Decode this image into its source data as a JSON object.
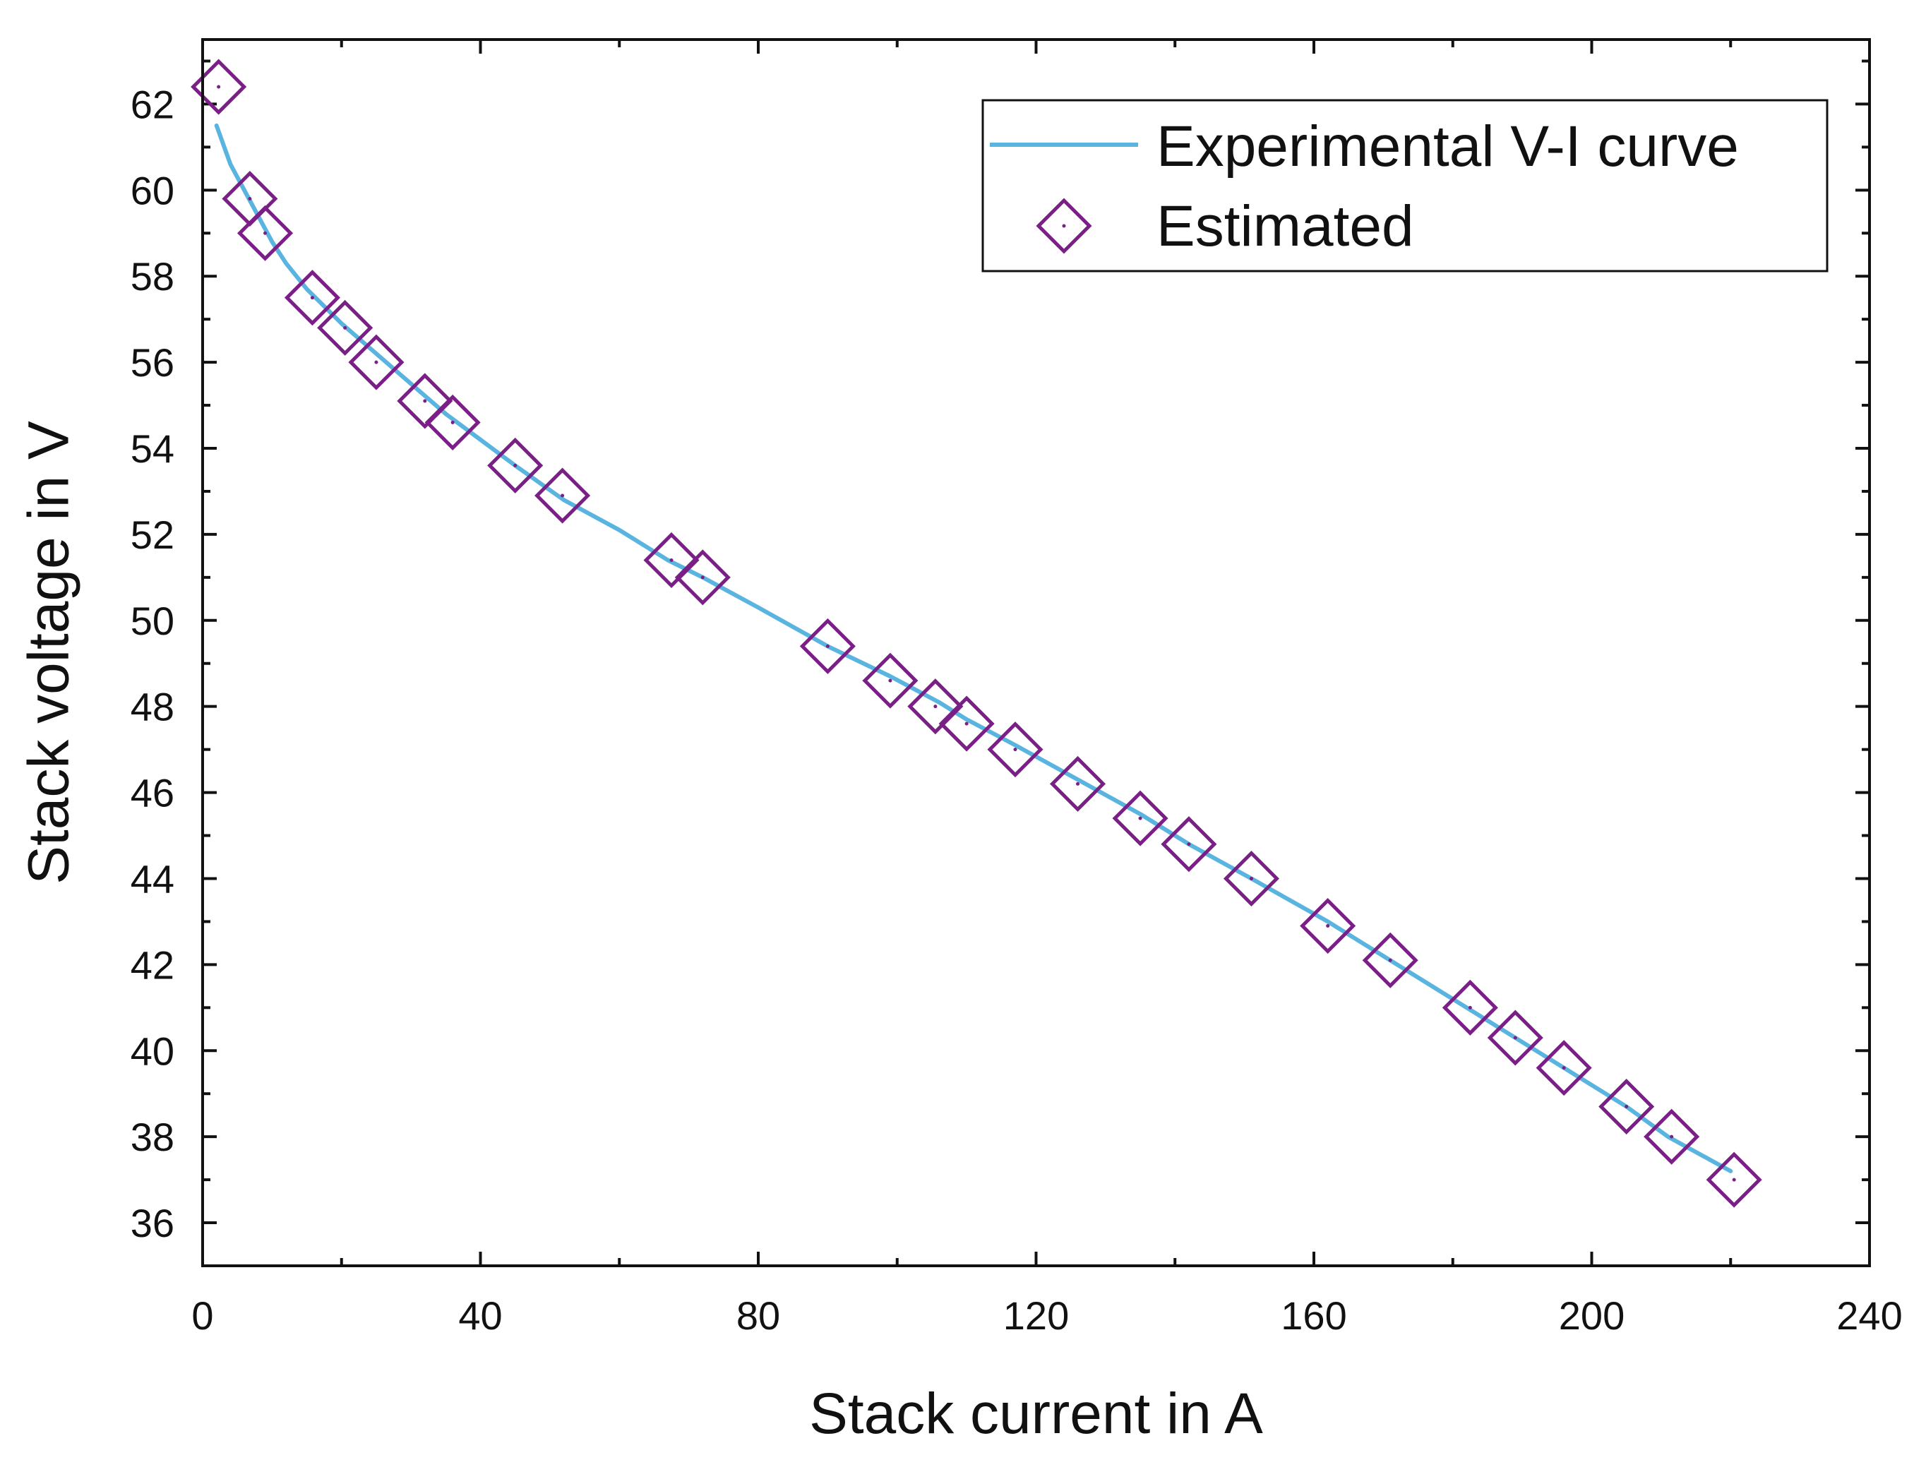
{
  "chart_data": {
    "type": "line",
    "title": "",
    "xlabel": "Stack current in A",
    "ylabel": "Stack voltage in V",
    "xlim": [
      0,
      240
    ],
    "ylim": [
      35,
      63.5
    ],
    "xticks": [
      0,
      40,
      80,
      120,
      160,
      200,
      240
    ],
    "yticks": [
      36,
      38,
      40,
      42,
      44,
      46,
      48,
      50,
      52,
      54,
      56,
      58,
      60,
      62
    ],
    "grid": false,
    "legend_position": "top-right",
    "series": [
      {
        "name": "Experimental V-I curve",
        "kind": "line",
        "color": "#5ab4e0",
        "x": [
          2,
          4,
          6,
          8,
          10,
          12,
          15,
          20,
          25,
          30,
          35,
          40,
          45,
          52,
          60,
          67,
          72,
          80,
          90,
          99,
          106,
          110,
          117,
          126,
          135,
          142,
          151,
          162,
          171,
          182,
          189,
          196,
          205,
          211,
          220
        ],
        "y": [
          61.5,
          60.6,
          60.0,
          59.4,
          58.8,
          58.3,
          57.7,
          56.9,
          56.2,
          55.5,
          54.8,
          54.2,
          53.6,
          52.8,
          52.1,
          51.4,
          51.0,
          50.3,
          49.4,
          48.7,
          48.1,
          47.7,
          47.1,
          46.3,
          45.5,
          44.8,
          44.0,
          43.0,
          42.1,
          41.0,
          40.3,
          39.6,
          38.7,
          38.0,
          37.2
        ]
      },
      {
        "name": "Estimated",
        "kind": "scatter",
        "marker": "diamond",
        "color": "#7a1f86",
        "x": [
          2.3,
          6.8,
          9.0,
          15.8,
          20.5,
          25.0,
          32.0,
          36.0,
          45.0,
          51.8,
          67.5,
          72.0,
          90.0,
          99.0,
          105.5,
          110.0,
          117.0,
          126.0,
          135.0,
          142.0,
          151.0,
          162.0,
          171.0,
          182.5,
          189.0,
          196.0,
          205.0,
          211.5,
          220.5
        ],
        "y": [
          62.4,
          59.8,
          59.0,
          57.5,
          56.8,
          56.0,
          55.1,
          54.6,
          53.6,
          52.9,
          51.4,
          51.0,
          49.4,
          48.6,
          48.0,
          47.6,
          47.0,
          46.2,
          45.4,
          44.8,
          44.0,
          42.9,
          42.1,
          41.0,
          40.3,
          39.6,
          38.7,
          38.0,
          37.0
        ]
      }
    ]
  }
}
